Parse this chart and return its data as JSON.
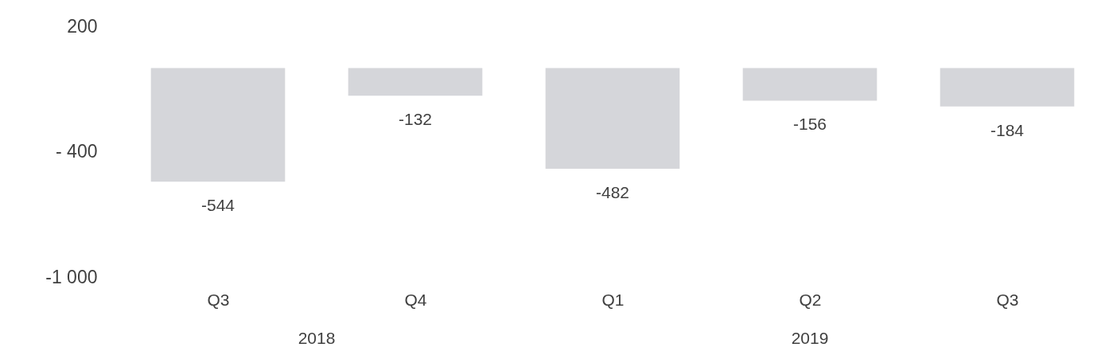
{
  "chart_data": {
    "type": "bar",
    "categories": [
      "Q3",
      "Q4",
      "Q1",
      "Q2",
      "Q3"
    ],
    "values": [
      -544,
      -132,
      -482,
      -156,
      -184
    ],
    "color": "#d5d6da",
    "data_labels": true,
    "ylim": [
      -1000,
      200
    ],
    "yticks": [
      200,
      {
        "value": -400,
        "label": "- 400"
      },
      {
        "value": -1000,
        "label": "-1 000"
      }
    ],
    "grid": false,
    "annotations": [
      "2018",
      "2019"
    ]
  }
}
